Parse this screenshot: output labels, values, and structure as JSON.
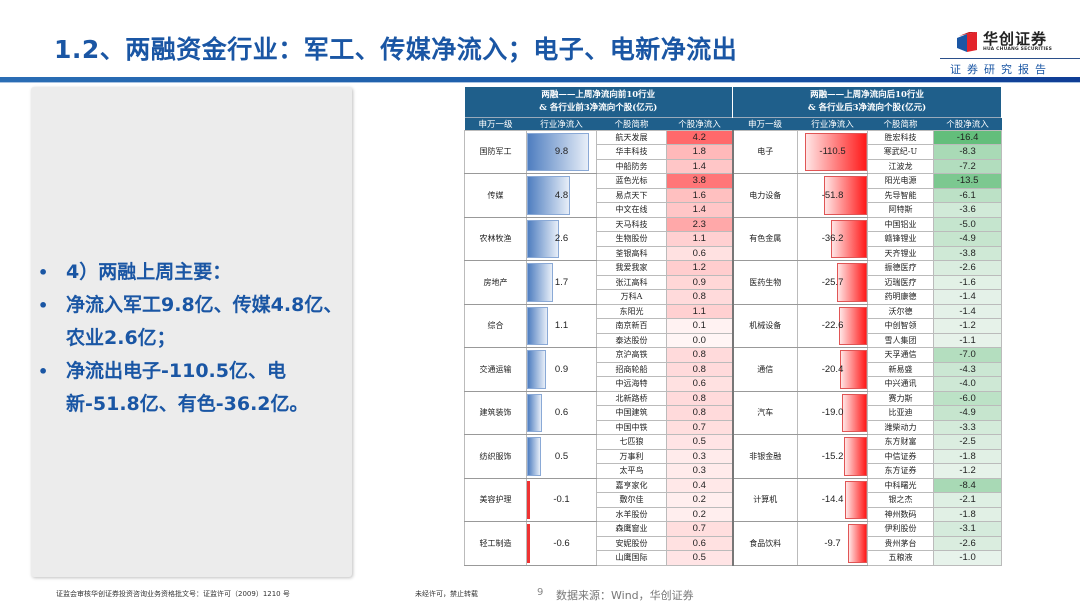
{
  "header": {
    "title": "1.2、两融资金行业：军工、传媒净流入；电子、电新净流出",
    "logo_cn": "华创证券",
    "logo_en": "HUA CHUANG SECURITIES",
    "report_label": "证券研究报告"
  },
  "colors": {
    "title_blue": "#1a56a4",
    "table_header": "#1f5f8b",
    "positive_bar": "#4f7ec0",
    "negative_bar": "#ff1a1a",
    "stock_pos_strong": "#f8696b",
    "stock_neg_strong": "#63be7b"
  },
  "left_panel": {
    "bullets": [
      {
        "text": "4）两融上周主要："
      },
      {
        "text": "净流入军工9.8亿、传媒4.8亿、农业2.6亿；"
      },
      {
        "text": "净流出电子-110.5亿、电新-51.8亿、有色-36.2亿。"
      }
    ]
  },
  "table": {
    "left_title_line1": "两融——上周净流向前10行业",
    "left_title_line2": "& 各行业前3净流向个股(亿元)",
    "right_title_line1": "两融——上周净流向后10行业",
    "right_title_line2": "& 各行业后3净流向个股(亿元)",
    "columns": [
      "申万一级",
      "行业净流入",
      "个股简称",
      "个股净流入",
      "申万一级",
      "行业净流入",
      "个股简称",
      "个股净流入"
    ],
    "top_industries": [
      {
        "industry": "国防军工",
        "flow": "9.8",
        "stocks": [
          [
            "航天发展",
            "4.2"
          ],
          [
            "华丰科技",
            "1.8"
          ],
          [
            "中船防务",
            "1.4"
          ]
        ]
      },
      {
        "industry": "传媒",
        "flow": "4.8",
        "stocks": [
          [
            "蓝色光标",
            "3.8"
          ],
          [
            "易点天下",
            "1.6"
          ],
          [
            "中文在线",
            "1.4"
          ]
        ]
      },
      {
        "industry": "农林牧渔",
        "flow": "2.6",
        "stocks": [
          [
            "天马科技",
            "2.3"
          ],
          [
            "生物股份",
            "1.1"
          ],
          [
            "荃银高科",
            "0.6"
          ]
        ]
      },
      {
        "industry": "房地产",
        "flow": "1.7",
        "stocks": [
          [
            "我爱我家",
            "1.2"
          ],
          [
            "张江高科",
            "0.9"
          ],
          [
            "万科A",
            "0.8"
          ]
        ]
      },
      {
        "industry": "综合",
        "flow": "1.1",
        "stocks": [
          [
            "东阳光",
            "1.1"
          ],
          [
            "南京新百",
            "0.1"
          ],
          [
            "泰达股份",
            "0.0"
          ]
        ]
      },
      {
        "industry": "交通运输",
        "flow": "0.9",
        "stocks": [
          [
            "京沪高铁",
            "0.8"
          ],
          [
            "招商轮船",
            "0.8"
          ],
          [
            "中远海特",
            "0.6"
          ]
        ]
      },
      {
        "industry": "建筑装饰",
        "flow": "0.6",
        "stocks": [
          [
            "北新路桥",
            "0.8"
          ],
          [
            "中国建筑",
            "0.8"
          ],
          [
            "中国中铁",
            "0.7"
          ]
        ]
      },
      {
        "industry": "纺织服饰",
        "flow": "0.5",
        "stocks": [
          [
            "七匹狼",
            "0.5"
          ],
          [
            "万事利",
            "0.3"
          ],
          [
            "太平鸟",
            "0.3"
          ]
        ]
      },
      {
        "industry": "美容护理",
        "flow": "-0.1",
        "stocks": [
          [
            "嘉亨家化",
            "0.4"
          ],
          [
            "敷尔佳",
            "0.2"
          ],
          [
            "水羊股份",
            "0.2"
          ]
        ]
      },
      {
        "industry": "轻工制造",
        "flow": "-0.6",
        "stocks": [
          [
            "森鹰窗业",
            "0.7"
          ],
          [
            "安妮股份",
            "0.6"
          ],
          [
            "山鹰国际",
            "0.5"
          ]
        ]
      }
    ],
    "bottom_industries": [
      {
        "industry": "电子",
        "flow": "-110.5",
        "stocks": [
          [
            "胜宏科技",
            "-16.4"
          ],
          [
            "寒武纪-U",
            "-8.3"
          ],
          [
            "江波龙",
            "-7.2"
          ]
        ]
      },
      {
        "industry": "电力设备",
        "flow": "-51.8",
        "stocks": [
          [
            "阳光电源",
            "-13.5"
          ],
          [
            "先导智能",
            "-6.1"
          ],
          [
            "阿特斯",
            "-3.6"
          ]
        ]
      },
      {
        "industry": "有色金属",
        "flow": "-36.2",
        "stocks": [
          [
            "中国铝业",
            "-5.0"
          ],
          [
            "赣锋锂业",
            "-4.9"
          ],
          [
            "天齐锂业",
            "-3.8"
          ]
        ]
      },
      {
        "industry": "医药生物",
        "flow": "-25.7",
        "stocks": [
          [
            "振德医疗",
            "-2.6"
          ],
          [
            "迈瑞医疗",
            "-1.6"
          ],
          [
            "药明康德",
            "-1.4"
          ]
        ]
      },
      {
        "industry": "机械设备",
        "flow": "-22.6",
        "stocks": [
          [
            "沃尔德",
            "-1.4"
          ],
          [
            "中创智领",
            "-1.2"
          ],
          [
            "雪人集团",
            "-1.1"
          ]
        ]
      },
      {
        "industry": "通信",
        "flow": "-20.4",
        "stocks": [
          [
            "天孚通信",
            "-7.0"
          ],
          [
            "新易盛",
            "-4.3"
          ],
          [
            "中兴通讯",
            "-4.0"
          ]
        ]
      },
      {
        "industry": "汽车",
        "flow": "-19.0",
        "stocks": [
          [
            "赛力斯",
            "-6.0"
          ],
          [
            "比亚迪",
            "-4.9"
          ],
          [
            "潍柴动力",
            "-3.3"
          ]
        ]
      },
      {
        "industry": "非银金融",
        "flow": "-15.2",
        "stocks": [
          [
            "东方财富",
            "-2.5"
          ],
          [
            "中信证券",
            "-1.8"
          ],
          [
            "东方证券",
            "-1.2"
          ]
        ]
      },
      {
        "industry": "计算机",
        "flow": "-14.4",
        "stocks": [
          [
            "中科曙光",
            "-8.4"
          ],
          [
            "银之杰",
            "-2.1"
          ],
          [
            "神州数码",
            "-1.8"
          ]
        ]
      },
      {
        "industry": "食品饮料",
        "flow": "-9.7",
        "stocks": [
          [
            "伊利股份",
            "-3.1"
          ],
          [
            "贵州茅台",
            "-2.6"
          ],
          [
            "五粮液",
            "-1.0"
          ]
        ]
      }
    ]
  },
  "footer": {
    "license": "证监会审核华创证券投资咨询业务资格批文号：证监许可（2009）1210 号",
    "notice": "未经许可，禁止转载",
    "page": "9",
    "source": "数据来源：Wind，华创证券"
  }
}
